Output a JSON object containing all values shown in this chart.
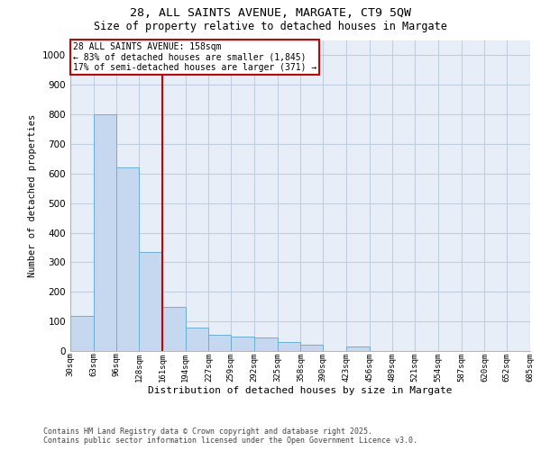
{
  "title1": "28, ALL SAINTS AVENUE, MARGATE, CT9 5QW",
  "title2": "Size of property relative to detached houses in Margate",
  "xlabel": "Distribution of detached houses by size in Margate",
  "ylabel": "Number of detached properties",
  "annotation_line1": "28 ALL SAINTS AVENUE: 158sqm",
  "annotation_line2": "← 83% of detached houses are smaller (1,845)",
  "annotation_line3": "17% of semi-detached houses are larger (371) →",
  "bin_edges": [
    30,
    63,
    96,
    128,
    161,
    194,
    227,
    259,
    292,
    325,
    358,
    390,
    423,
    456,
    489,
    521,
    554,
    587,
    620,
    652,
    685
  ],
  "bin_labels": [
    "30sqm",
    "63sqm",
    "96sqm",
    "128sqm",
    "161sqm",
    "194sqm",
    "227sqm",
    "259sqm",
    "292sqm",
    "325sqm",
    "358sqm",
    "390sqm",
    "423sqm",
    "456sqm",
    "489sqm",
    "521sqm",
    "554sqm",
    "587sqm",
    "620sqm",
    "652sqm",
    "685sqm"
  ],
  "bar_heights": [
    120,
    800,
    620,
    335,
    150,
    80,
    55,
    50,
    45,
    30,
    20,
    0,
    15,
    0,
    0,
    0,
    0,
    0,
    0,
    0
  ],
  "bar_color": "#c5d8ef",
  "bar_edge_color": "#6baed6",
  "vline_color": "#cc0000",
  "vline_x": 161,
  "annotation_box_color": "#cc0000",
  "ylim": [
    0,
    1050
  ],
  "yticks": [
    0,
    100,
    200,
    300,
    400,
    500,
    600,
    700,
    800,
    900,
    1000
  ],
  "grid_color": "#c0cfe0",
  "bg_color": "#e8eef8",
  "footer1": "Contains HM Land Registry data © Crown copyright and database right 2025.",
  "footer2": "Contains public sector information licensed under the Open Government Licence v3.0."
}
